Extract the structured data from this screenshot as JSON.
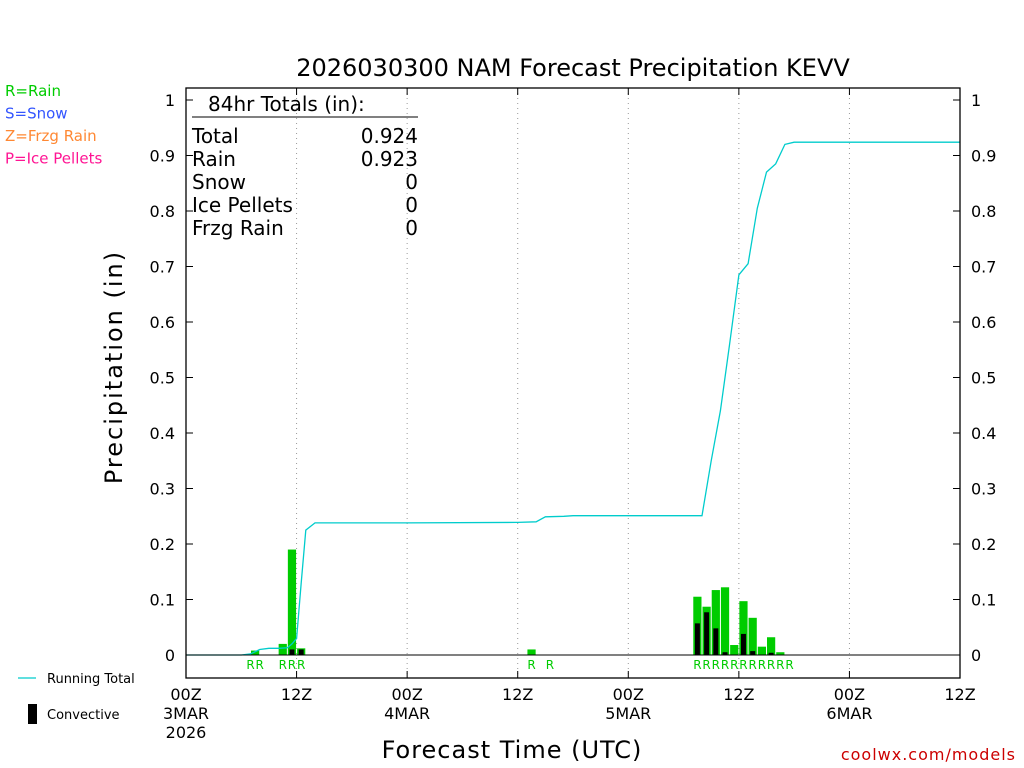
{
  "chart_data": {
    "type": "bar",
    "title": "2026030300 NAM Forecast Precipitation KEVV",
    "ylabel": "Precipitation (in)",
    "xlabel": "Forecast Time (UTC)",
    "ylim": [
      0,
      1
    ],
    "yticks": [
      "0",
      "0.1",
      "0.2",
      "0.3",
      "0.4",
      "0.5",
      "0.6",
      "0.7",
      "0.8",
      "0.9",
      "1"
    ],
    "xlim_hours": [
      0,
      84
    ],
    "xticks": [
      {
        "hour": 0,
        "lines": [
          "00Z",
          "3MAR",
          "2026"
        ]
      },
      {
        "hour": 12,
        "lines": [
          "12Z"
        ]
      },
      {
        "hour": 24,
        "lines": [
          "00Z",
          "4MAR"
        ]
      },
      {
        "hour": 36,
        "lines": [
          "12Z"
        ]
      },
      {
        "hour": 48,
        "lines": [
          "00Z",
          "5MAR"
        ]
      },
      {
        "hour": 60,
        "lines": [
          "12Z"
        ]
      },
      {
        "hour": 72,
        "lines": [
          "00Z",
          "6MAR"
        ]
      },
      {
        "hour": 84,
        "lines": [
          "12Z"
        ]
      }
    ],
    "grid": "vertical dotted at 12h intervals",
    "totals": {
      "header": "84hr Totals (in):",
      "rows": [
        {
          "label": "Total",
          "value": "0.924"
        },
        {
          "label": "Rain",
          "value": "0.923"
        },
        {
          "label": "Snow",
          "value": "0"
        },
        {
          "label": "Ice Pellets",
          "value": "0"
        },
        {
          "label": "Frzg Rain",
          "value": "0"
        }
      ]
    },
    "ptype_legend": [
      {
        "text": "R=Rain",
        "color": "#00cc00"
      },
      {
        "text": "S=Snow",
        "color": "#3355ff"
      },
      {
        "text": "Z=Frzg Rain",
        "color": "#ff8833"
      },
      {
        "text": "P=Ice Pellets",
        "color": "#ff1493"
      }
    ],
    "bottom_legend": [
      {
        "text": "Running Total",
        "symbol": "line",
        "color": "#00cccc"
      },
      {
        "text": "Convective",
        "symbol": "bar",
        "color": "#000000"
      }
    ],
    "credit": "coolwx.com/models",
    "series": [
      {
        "name": "Running Total",
        "color": "#00cccc",
        "x": [
          0,
          6,
          7,
          8,
          9,
          10,
          11,
          11.5,
          12,
          12.5,
          13,
          14,
          24,
          36,
          38,
          39,
          41,
          42,
          56,
          57,
          58,
          59,
          60,
          61,
          62,
          63,
          64,
          65,
          66,
          67,
          69,
          84
        ],
        "y": [
          0,
          0,
          0.002,
          0.01,
          0.012,
          0.012,
          0.013,
          0.02,
          0.03,
          0.13,
          0.225,
          0.238,
          0.238,
          0.239,
          0.24,
          0.249,
          0.25,
          0.251,
          0.251,
          0.35,
          0.44,
          0.56,
          0.685,
          0.705,
          0.805,
          0.87,
          0.885,
          0.92,
          0.924,
          0.924,
          0.924,
          0.924
        ]
      },
      {
        "name": "Precipitation",
        "color": "#00cc00",
        "hours": [
          8,
          11,
          12,
          13,
          38,
          56,
          57,
          58,
          59,
          60,
          61,
          62,
          63,
          64,
          65
        ],
        "values": [
          0.008,
          0.02,
          0.19,
          0.012,
          0.01,
          0.105,
          0.087,
          0.117,
          0.122,
          0.018,
          0.097,
          0.067,
          0.015,
          0.032,
          0.005
        ]
      },
      {
        "name": "Convective",
        "color": "#000000",
        "hours": [
          12,
          13,
          56,
          57,
          58,
          59,
          61,
          62,
          64
        ],
        "values": [
          0.01,
          0.01,
          0.057,
          0.077,
          0.048,
          0.005,
          0.038,
          0.007,
          0.004
        ]
      }
    ],
    "ptype_marks": [
      {
        "hour": 7.5,
        "text": "R"
      },
      {
        "hour": 8.5,
        "text": "R"
      },
      {
        "hour": 11,
        "text": "R"
      },
      {
        "hour": 12,
        "text": "R"
      },
      {
        "hour": 13,
        "text": "R"
      },
      {
        "hour": 38,
        "text": "R"
      },
      {
        "hour": 40,
        "text": "R"
      },
      {
        "hour": 56,
        "text": "R"
      },
      {
        "hour": 57,
        "text": "R"
      },
      {
        "hour": 58,
        "text": "R"
      },
      {
        "hour": 59,
        "text": "R"
      },
      {
        "hour": 60,
        "text": "R"
      },
      {
        "hour": 61,
        "text": "R"
      },
      {
        "hour": 62,
        "text": "R"
      },
      {
        "hour": 63,
        "text": "R"
      },
      {
        "hour": 64,
        "text": "R"
      },
      {
        "hour": 65,
        "text": "R"
      },
      {
        "hour": 66,
        "text": "R"
      }
    ]
  }
}
